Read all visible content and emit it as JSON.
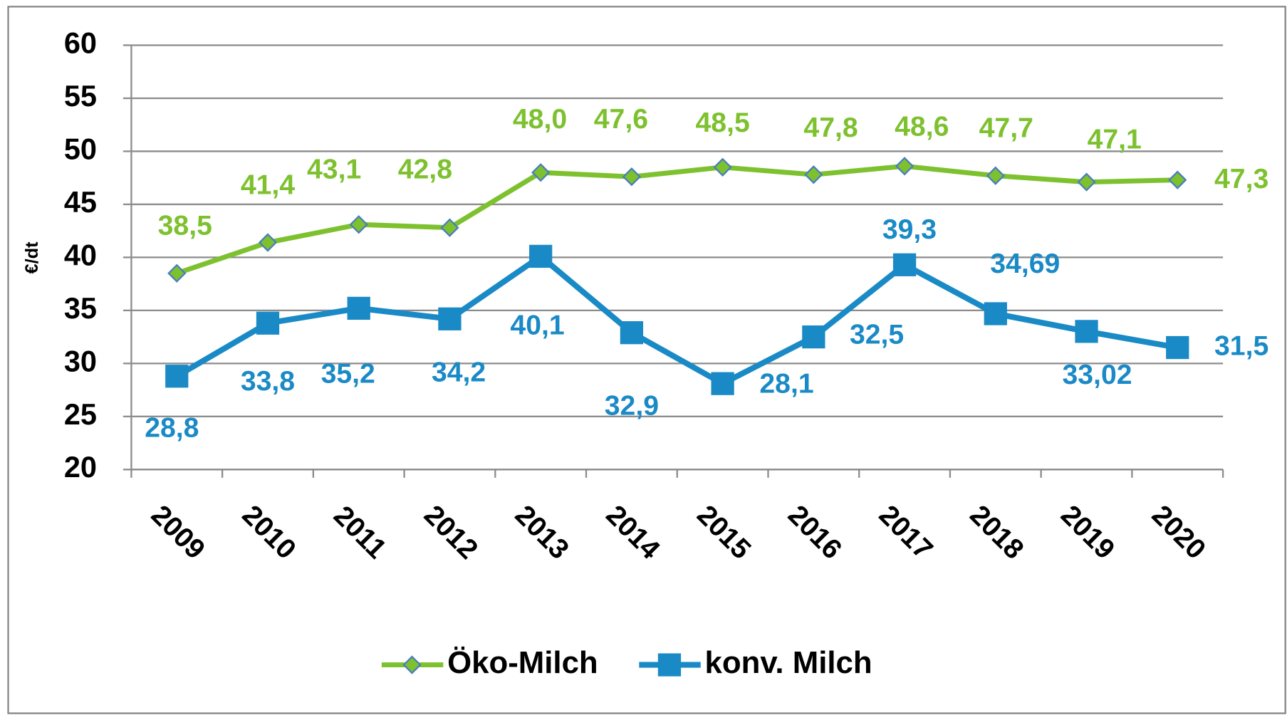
{
  "chart_data": {
    "type": "line",
    "y_label": "€/dt",
    "categories": [
      "2009",
      "2010",
      "2011",
      "2012",
      "2013",
      "2014",
      "2015",
      "2016",
      "2017",
      "2018",
      "2019",
      "2020"
    ],
    "ylim": [
      20,
      60
    ],
    "yticks": [
      20,
      25,
      30,
      35,
      40,
      45,
      50,
      55,
      60
    ],
    "grid": true,
    "legend": "bottom",
    "series": [
      {
        "name": "Öko-Milch",
        "color": "#7dc12f",
        "marker": "diamond",
        "values": [
          38.5,
          41.4,
          43.1,
          42.8,
          48.0,
          47.6,
          48.5,
          47.8,
          48.6,
          47.7,
          47.1,
          47.3
        ],
        "value_labels": [
          "38,5",
          "41,4",
          "43,1",
          "42,8",
          "48,0",
          "47,6",
          "48,5",
          "47,8",
          "48,6",
          "47,7",
          "47,1",
          "47,3"
        ]
      },
      {
        "name": "konv. Milch",
        "color": "#1a8ac6",
        "marker": "square",
        "values": [
          28.8,
          33.8,
          35.2,
          34.2,
          40.1,
          32.9,
          28.1,
          32.5,
          39.3,
          34.69,
          33.02,
          31.5
        ],
        "value_labels": [
          "28,8",
          "33,8",
          "35,2",
          "34,2",
          "40,1",
          "32,9",
          "28,1",
          "32,5",
          "39,3",
          "34,69",
          "33,02",
          "31,5"
        ]
      }
    ]
  }
}
